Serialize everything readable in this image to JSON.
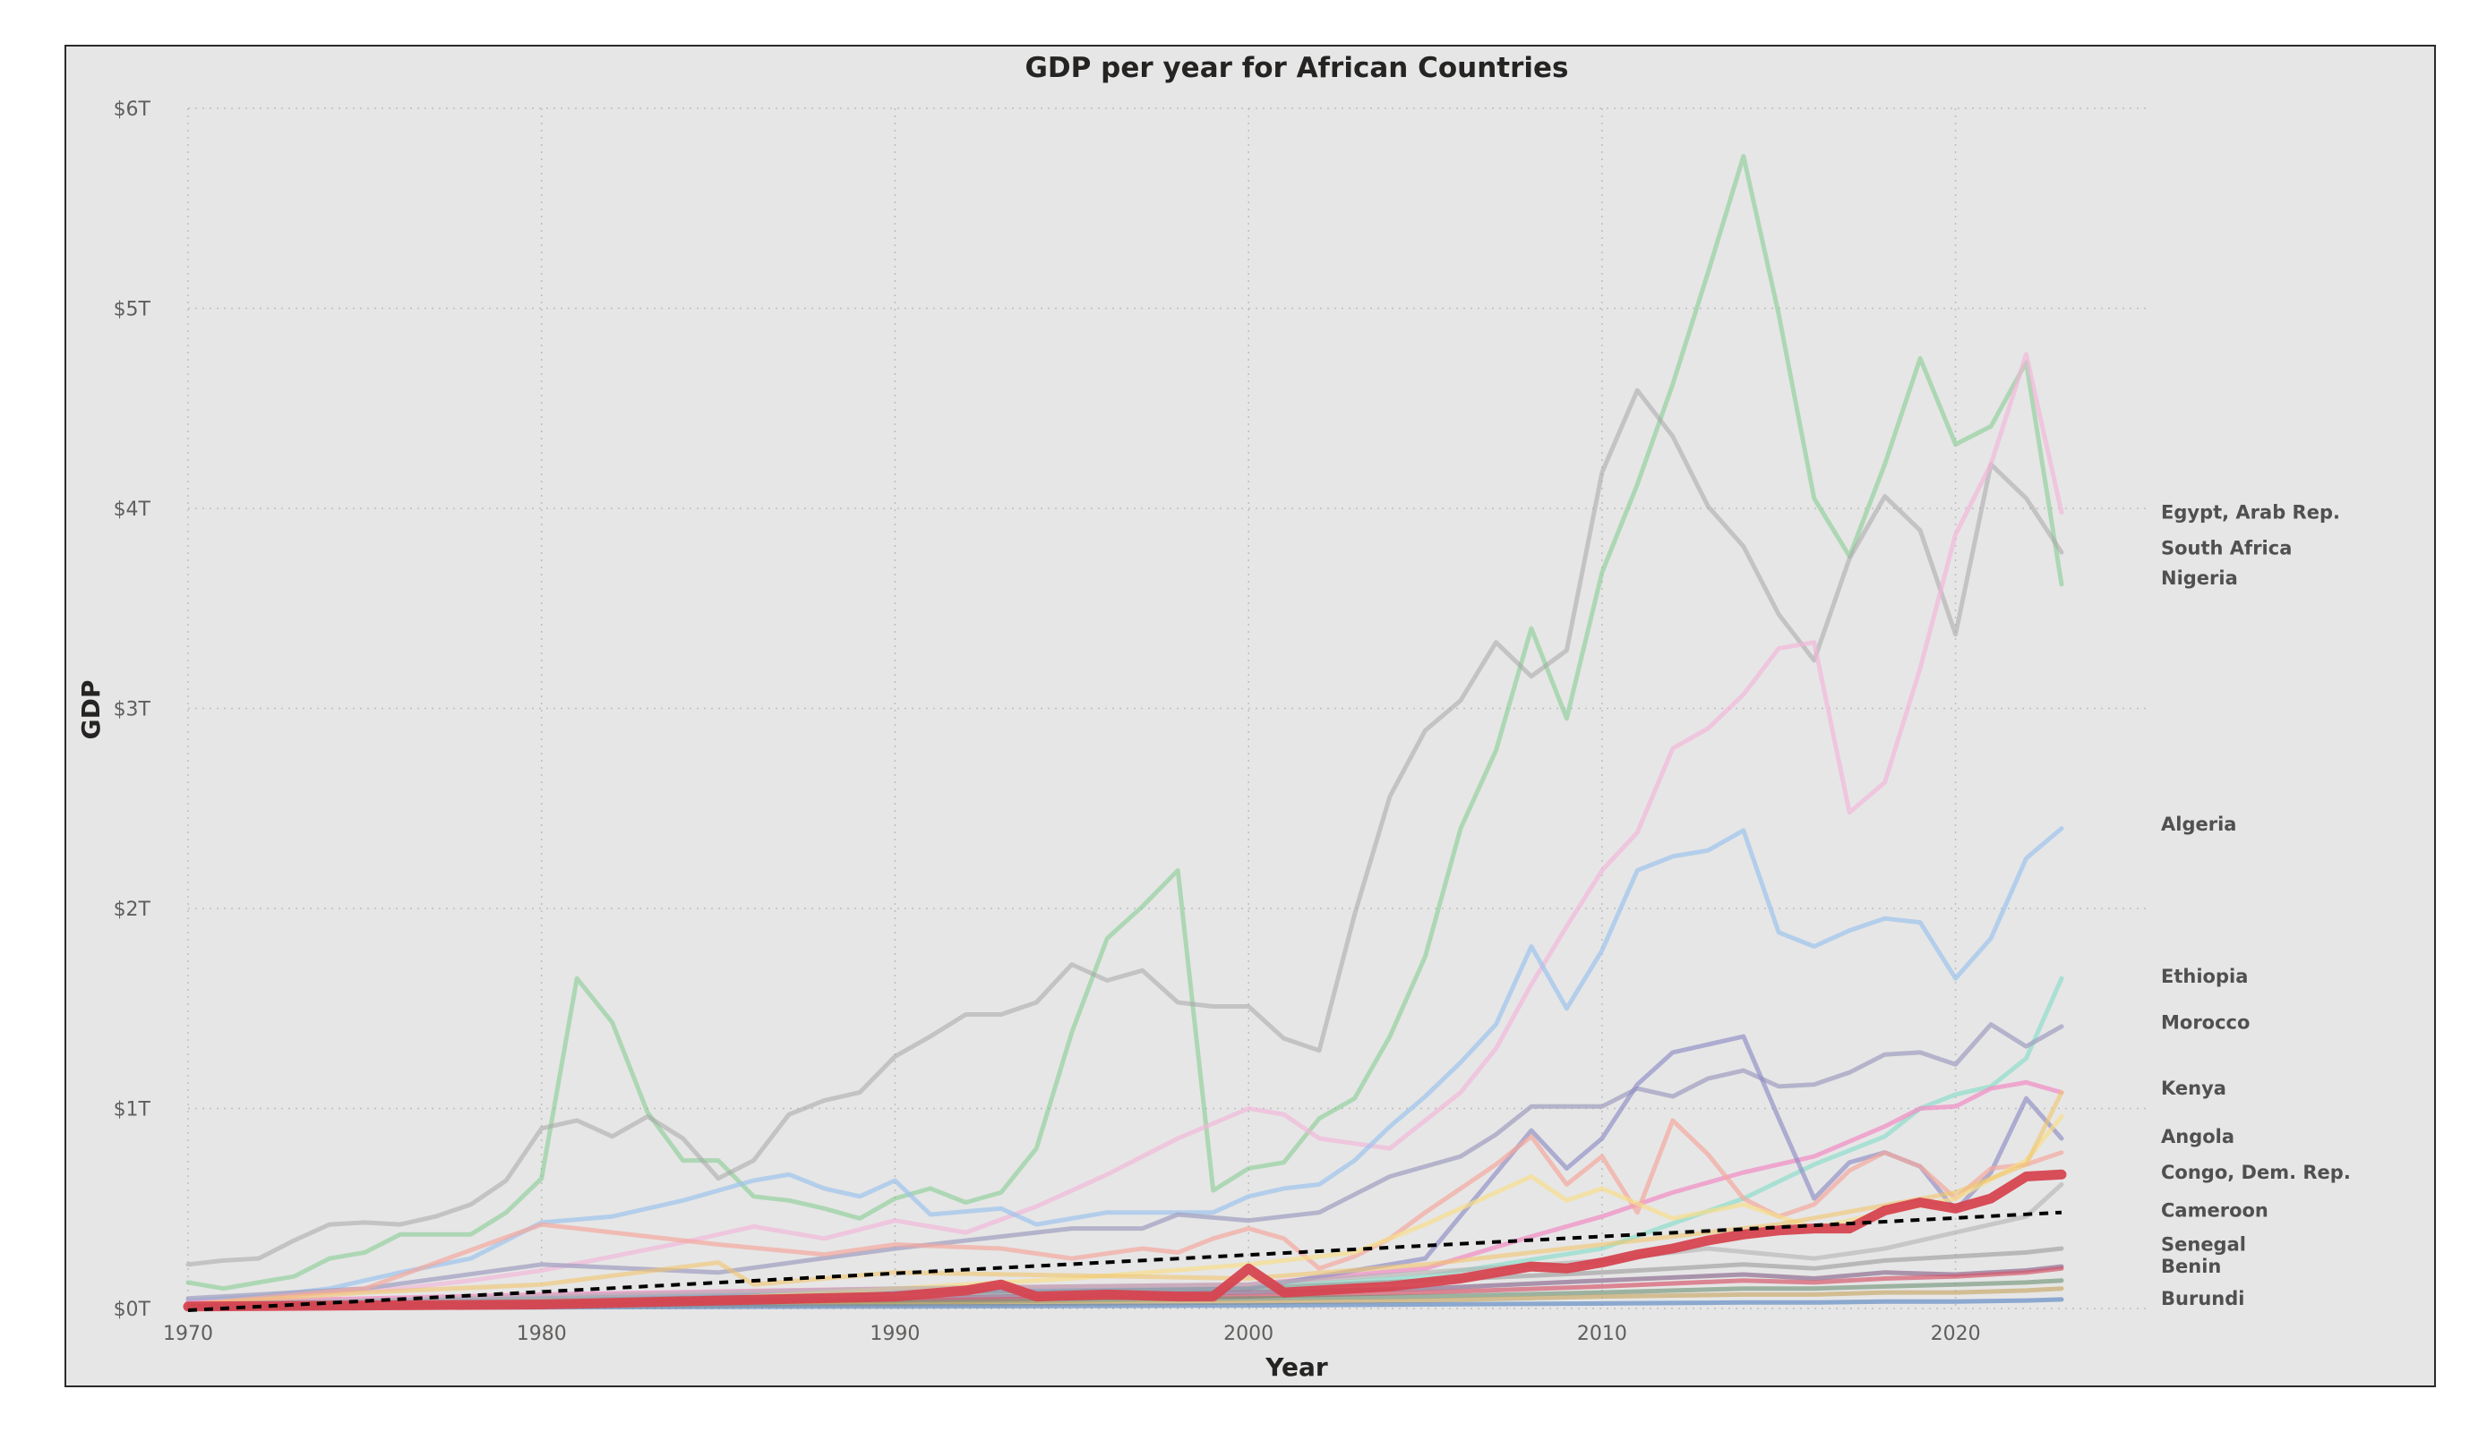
{
  "chart_data": {
    "type": "line",
    "title": "GDP per year for African Countries",
    "xlabel": "Year",
    "ylabel": "GDP",
    "xlim": [
      1970,
      2023
    ],
    "ylim": [
      0,
      6
    ],
    "x_ticks": [
      1970,
      1980,
      1990,
      2000,
      2010,
      2020
    ],
    "y_ticks": [
      {
        "value": 0,
        "label": "$0T"
      },
      {
        "value": 1,
        "label": "$1T"
      },
      {
        "value": 2,
        "label": "$2T"
      },
      {
        "value": 3,
        "label": "$3T"
      },
      {
        "value": 4,
        "label": "$4T"
      },
      {
        "value": 5,
        "label": "$5T"
      },
      {
        "value": 6,
        "label": "$6T"
      }
    ],
    "grid": true,
    "end_labels": [
      {
        "text": "Egypt, Arab Rep.",
        "value": 3.98
      },
      {
        "text": "South Africa",
        "value": 3.8
      },
      {
        "text": "Nigeria",
        "value": 3.65
      },
      {
        "text": "Algeria",
        "value": 2.42
      },
      {
        "text": "Ethiopia",
        "value": 1.66
      },
      {
        "text": "Morocco",
        "value": 1.43
      },
      {
        "text": "Kenya",
        "value": 1.1
      },
      {
        "text": "Angola",
        "value": 0.86
      },
      {
        "text": "Congo, Dem. Rep.",
        "value": 0.68
      },
      {
        "text": "Cameroon",
        "value": 0.49
      },
      {
        "text": "Senegal",
        "value": 0.32
      },
      {
        "text": "Benin",
        "value": 0.21
      },
      {
        "text": "Burundi",
        "value": 0.05
      }
    ],
    "series": [
      {
        "color": "#7ecb8b",
        "width": 5,
        "opacity": 0.55,
        "x": [
          1970,
          1971,
          1972,
          1973,
          1974,
          1975,
          1976,
          1977,
          1978,
          1979,
          1980,
          1981,
          1982,
          1983,
          1984,
          1985,
          1986,
          1987,
          1988,
          1989,
          1990,
          1991,
          1992,
          1993,
          1994,
          1995,
          1996,
          1997,
          1998,
          1999,
          2000,
          2001,
          2002,
          2003,
          2004,
          2005,
          2006,
          2007,
          2008,
          2009,
          2010,
          2011,
          2012,
          2013,
          2014,
          2015,
          2016,
          2017,
          2018,
          2019,
          2020,
          2021,
          2022,
          2023
        ],
        "values": [
          0.13,
          0.1,
          0.13,
          0.16,
          0.25,
          0.28,
          0.37,
          0.37,
          0.37,
          0.48,
          0.65,
          1.65,
          1.43,
          0.98,
          0.74,
          0.74,
          0.56,
          0.54,
          0.5,
          0.45,
          0.55,
          0.6,
          0.53,
          0.58,
          0.8,
          1.38,
          1.85,
          2.01,
          2.19,
          0.59,
          0.7,
          0.73,
          0.95,
          1.05,
          1.36,
          1.76,
          2.4,
          2.79,
          3.4,
          2.95,
          3.68,
          4.12,
          4.62,
          5.18,
          5.76,
          4.97,
          4.05,
          3.76,
          4.22,
          4.75,
          4.32,
          4.41,
          4.73,
          3.62
        ]
      },
      {
        "color": "#a6a6a6",
        "width": 5,
        "opacity": 0.55,
        "x": [
          1970,
          1971,
          1972,
          1973,
          1974,
          1975,
          1976,
          1977,
          1978,
          1979,
          1980,
          1981,
          1982,
          1983,
          1984,
          1985,
          1986,
          1987,
          1988,
          1989,
          1990,
          1991,
          1992,
          1993,
          1994,
          1995,
          1996,
          1997,
          1998,
          1999,
          2000,
          2001,
          2002,
          2003,
          2004,
          2005,
          2006,
          2007,
          2008,
          2009,
          2010,
          2011,
          2012,
          2013,
          2014,
          2015,
          2016,
          2017,
          2018,
          2019,
          2020,
          2021,
          2022,
          2023
        ],
        "values": [
          0.22,
          0.24,
          0.25,
          0.34,
          0.42,
          0.43,
          0.42,
          0.46,
          0.52,
          0.64,
          0.9,
          0.94,
          0.86,
          0.96,
          0.85,
          0.65,
          0.74,
          0.97,
          1.04,
          1.08,
          1.26,
          1.36,
          1.47,
          1.47,
          1.53,
          1.72,
          1.64,
          1.69,
          1.53,
          1.51,
          1.51,
          1.35,
          1.29,
          1.97,
          2.56,
          2.89,
          3.04,
          3.33,
          3.16,
          3.29,
          4.18,
          4.59,
          4.36,
          4.01,
          3.81,
          3.47,
          3.24,
          3.75,
          4.06,
          3.89,
          3.37,
          4.22,
          4.05,
          3.78
        ]
      },
      {
        "color": "#f2b6d8",
        "width": 5,
        "opacity": 0.65,
        "x": [
          1970,
          1972,
          1974,
          1976,
          1978,
          1980,
          1982,
          1984,
          1986,
          1988,
          1990,
          1992,
          1994,
          1996,
          1998,
          2000,
          2001,
          2002,
          2004,
          2006,
          2007,
          2008,
          2009,
          2010,
          2011,
          2012,
          2013,
          2014,
          2015,
          2016,
          2017,
          2018,
          2019,
          2020,
          2021,
          2022,
          2023
        ],
        "values": [
          0.03,
          0.05,
          0.08,
          0.1,
          0.14,
          0.19,
          0.26,
          0.33,
          0.41,
          0.35,
          0.44,
          0.38,
          0.51,
          0.67,
          0.85,
          1.0,
          0.97,
          0.85,
          0.8,
          1.08,
          1.3,
          1.62,
          1.91,
          2.19,
          2.38,
          2.8,
          2.9,
          3.07,
          3.3,
          3.33,
          2.48,
          2.63,
          3.2,
          3.87,
          4.22,
          4.77,
          3.98
        ]
      },
      {
        "color": "#9cc3ec",
        "width": 5,
        "opacity": 0.7,
        "x": [
          1970,
          1972,
          1974,
          1976,
          1978,
          1980,
          1982,
          1984,
          1986,
          1987,
          1988,
          1989,
          1990,
          1991,
          1993,
          1994,
          1996,
          1998,
          1999,
          2000,
          2001,
          2002,
          2003,
          2004,
          2005,
          2006,
          2007,
          2008,
          2009,
          2010,
          2011,
          2012,
          2013,
          2014,
          2015,
          2016,
          2017,
          2018,
          2019,
          2020,
          2021,
          2022,
          2023
        ],
        "values": [
          0.04,
          0.06,
          0.1,
          0.18,
          0.25,
          0.43,
          0.46,
          0.54,
          0.64,
          0.67,
          0.6,
          0.56,
          0.64,
          0.47,
          0.5,
          0.42,
          0.48,
          0.48,
          0.48,
          0.56,
          0.6,
          0.62,
          0.74,
          0.91,
          1.06,
          1.23,
          1.42,
          1.81,
          1.5,
          1.79,
          2.19,
          2.26,
          2.29,
          2.39,
          1.88,
          1.81,
          1.89,
          1.95,
          1.93,
          1.65,
          1.85,
          2.25,
          2.4
        ]
      },
      {
        "color": "#7fdcc7",
        "width": 5,
        "opacity": 0.6,
        "x": [
          1970,
          1980,
          1990,
          2000,
          2005,
          2010,
          2014,
          2016,
          2018,
          2019,
          2020,
          2021,
          2022,
          2023
        ],
        "values": [
          0.02,
          0.05,
          0.08,
          0.1,
          0.16,
          0.3,
          0.55,
          0.72,
          0.86,
          1.0,
          1.07,
          1.11,
          1.25,
          1.65
        ]
      },
      {
        "color": "#a3a1c2",
        "width": 5,
        "opacity": 0.75,
        "x": [
          1970,
          1975,
          1980,
          1985,
          1990,
          1995,
          1997,
          1998,
          2000,
          2002,
          2004,
          2006,
          2007,
          2008,
          2009,
          2010,
          2011,
          2012,
          2013,
          2014,
          2015,
          2016,
          2017,
          2018,
          2019,
          2020,
          2021,
          2022,
          2023
        ],
        "values": [
          0.05,
          0.1,
          0.22,
          0.18,
          0.3,
          0.4,
          0.4,
          0.47,
          0.44,
          0.48,
          0.66,
          0.76,
          0.87,
          1.01,
          1.01,
          1.01,
          1.1,
          1.06,
          1.15,
          1.19,
          1.11,
          1.12,
          1.18,
          1.27,
          1.28,
          1.22,
          1.42,
          1.31,
          1.41
        ]
      },
      {
        "color": "#f090c5",
        "width": 5,
        "opacity": 0.75,
        "x": [
          1970,
          1980,
          1990,
          2000,
          2005,
          2008,
          2010,
          2012,
          2014,
          2016,
          2018,
          2019,
          2020,
          2021,
          2022,
          2023
        ],
        "values": [
          0.03,
          0.07,
          0.1,
          0.12,
          0.2,
          0.36,
          0.46,
          0.58,
          0.68,
          0.76,
          0.91,
          1.0,
          1.01,
          1.1,
          1.13,
          1.08
        ]
      },
      {
        "color": "#8d8cc5",
        "width": 5,
        "opacity": 0.65,
        "x": [
          1970,
          1980,
          1990,
          2000,
          2005,
          2008,
          2009,
          2010,
          2011,
          2012,
          2013,
          2014,
          2015,
          2016,
          2017,
          2018,
          2019,
          2020,
          2021,
          2022,
          2023
        ],
        "values": [
          0.02,
          0.05,
          0.08,
          0.1,
          0.25,
          0.89,
          0.7,
          0.85,
          1.12,
          1.28,
          1.32,
          1.36,
          0.95,
          0.55,
          0.73,
          0.78,
          0.71,
          0.49,
          0.68,
          1.05,
          0.85
        ]
      },
      {
        "color": "#f3a89e",
        "width": 5,
        "opacity": 0.7,
        "x": [
          1970,
          1975,
          1980,
          1985,
          1988,
          1990,
          1993,
          1995,
          1997,
          1998,
          1999,
          2000,
          2001,
          2002,
          2003,
          2004,
          2005,
          2006,
          2007,
          2008,
          2009,
          2010,
          2011,
          2012,
          2013,
          2014,
          2015,
          2016,
          2017,
          2018,
          2019,
          2020,
          2021,
          2022,
          2023
        ],
        "values": [
          0.02,
          0.1,
          0.42,
          0.32,
          0.27,
          0.32,
          0.3,
          0.25,
          0.3,
          0.28,
          0.35,
          0.4,
          0.35,
          0.2,
          0.26,
          0.35,
          0.48,
          0.6,
          0.72,
          0.86,
          0.62,
          0.76,
          0.48,
          0.94,
          0.77,
          0.55,
          0.46,
          0.52,
          0.69,
          0.78,
          0.71,
          0.55,
          0.7,
          0.72,
          0.78
        ]
      },
      {
        "color": "#f7dd8a",
        "width": 5,
        "opacity": 0.7,
        "x": [
          1970,
          1985,
          1990,
          1995,
          2000,
          2003,
          2005,
          2007,
          2008,
          2009,
          2010,
          2012,
          2014,
          2016,
          2018,
          2020,
          2022,
          2023
        ],
        "values": [
          0.01,
          0.05,
          0.1,
          0.15,
          0.22,
          0.28,
          0.42,
          0.58,
          0.66,
          0.54,
          0.6,
          0.45,
          0.52,
          0.4,
          0.48,
          0.55,
          0.74,
          0.96
        ]
      },
      {
        "color": "#f1c56c",
        "width": 5,
        "opacity": 0.6,
        "x": [
          1970,
          1975,
          1980,
          1985,
          1986,
          1990,
          2000,
          2005,
          2010,
          2015,
          2020,
          2022,
          2023
        ],
        "values": [
          0.02,
          0.08,
          0.12,
          0.23,
          0.12,
          0.18,
          0.15,
          0.22,
          0.32,
          0.42,
          0.58,
          0.72,
          1.08
        ]
      },
      {
        "color": "#b3b3b3",
        "width": 5,
        "opacity": 0.6,
        "x": [
          1970,
          1980,
          1990,
          2000,
          2005,
          2010,
          2013,
          2016,
          2018,
          2020,
          2022,
          2023
        ],
        "values": [
          0.02,
          0.06,
          0.1,
          0.12,
          0.18,
          0.24,
          0.3,
          0.25,
          0.3,
          0.38,
          0.46,
          0.62
        ]
      },
      {
        "color": "#999999",
        "width": 5,
        "opacity": 0.6,
        "x": [
          1970,
          1980,
          1990,
          2000,
          2005,
          2010,
          2014,
          2016,
          2018,
          2020,
          2022,
          2023
        ],
        "values": [
          0.01,
          0.04,
          0.07,
          0.1,
          0.14,
          0.18,
          0.22,
          0.2,
          0.24,
          0.26,
          0.28,
          0.3
        ]
      },
      {
        "color": "#8e6e92",
        "width": 5,
        "opacity": 0.7,
        "x": [
          1970,
          1980,
          1990,
          2000,
          2005,
          2010,
          2014,
          2016,
          2018,
          2020,
          2022,
          2023
        ],
        "values": [
          0.01,
          0.03,
          0.05,
          0.08,
          0.1,
          0.14,
          0.17,
          0.15,
          0.18,
          0.17,
          0.19,
          0.21
        ]
      },
      {
        "color": "#d55a6e",
        "width": 5,
        "opacity": 0.7,
        "x": [
          1970,
          1980,
          1990,
          2000,
          2005,
          2010,
          2014,
          2016,
          2018,
          2020,
          2022,
          2023
        ],
        "values": [
          0.01,
          0.02,
          0.04,
          0.06,
          0.08,
          0.11,
          0.14,
          0.13,
          0.15,
          0.16,
          0.18,
          0.2
        ]
      },
      {
        "color": "#6b8f71",
        "width": 5,
        "opacity": 0.6,
        "x": [
          1970,
          1980,
          1990,
          2000,
          2005,
          2010,
          2014,
          2016,
          2018,
          2020,
          2022,
          2023
        ],
        "values": [
          0.01,
          0.02,
          0.03,
          0.05,
          0.06,
          0.08,
          0.1,
          0.1,
          0.11,
          0.12,
          0.13,
          0.14
        ]
      },
      {
        "color": "#c5a25a",
        "width": 5,
        "opacity": 0.6,
        "x": [
          1970,
          1980,
          1990,
          2000,
          2005,
          2010,
          2014,
          2016,
          2018,
          2020,
          2022,
          2023
        ],
        "values": [
          0.005,
          0.01,
          0.02,
          0.03,
          0.04,
          0.06,
          0.07,
          0.07,
          0.08,
          0.08,
          0.09,
          0.1
        ]
      },
      {
        "color": "#4f7fbf",
        "width": 5,
        "opacity": 0.6,
        "x": [
          1970,
          1980,
          1990,
          2000,
          2005,
          2010,
          2014,
          2016,
          2018,
          2020,
          2022,
          2023
        ],
        "values": [
          0.003,
          0.006,
          0.01,
          0.015,
          0.02,
          0.025,
          0.03,
          0.03,
          0.035,
          0.035,
          0.04,
          0.045
        ]
      },
      {
        "color": "#d64550",
        "width": 11,
        "opacity": 0.95,
        "x": [
          1970,
          1980,
          1990,
          1992,
          1993,
          1994,
          1996,
          1998,
          1999,
          2000,
          2001,
          2002,
          2004,
          2006,
          2007,
          2008,
          2009,
          2010,
          2011,
          2012,
          2013,
          2014,
          2015,
          2016,
          2017,
          2018,
          2019,
          2020,
          2021,
          2022,
          2023
        ],
        "values": [
          0.01,
          0.02,
          0.06,
          0.09,
          0.12,
          0.06,
          0.07,
          0.06,
          0.06,
          0.2,
          0.08,
          0.09,
          0.11,
          0.15,
          0.18,
          0.21,
          0.2,
          0.23,
          0.27,
          0.3,
          0.34,
          0.37,
          0.39,
          0.4,
          0.4,
          0.49,
          0.53,
          0.5,
          0.55,
          0.66,
          0.67
        ]
      }
    ],
    "trendline": {
      "color": "#000000",
      "dashed": true,
      "x": [
        1970,
        2023
      ],
      "values": [
        -0.09,
        0.48
      ]
    }
  }
}
